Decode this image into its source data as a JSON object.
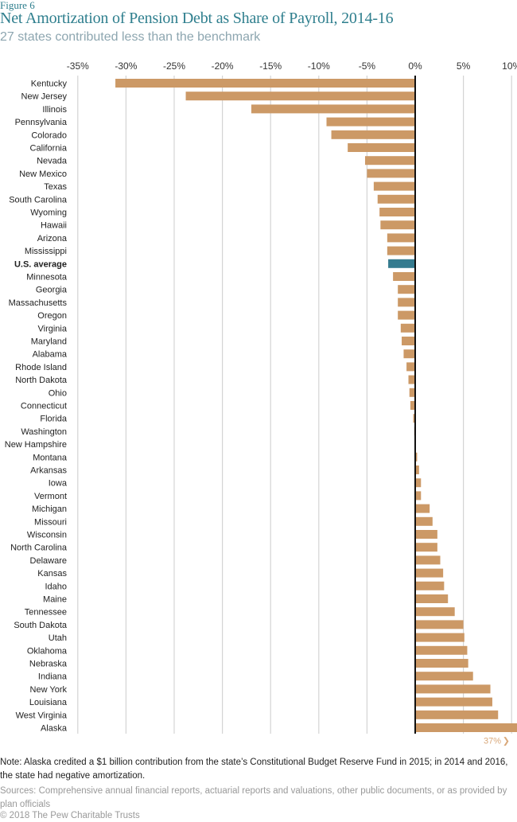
{
  "figure_label": "Figure 6",
  "chart_data": {
    "type": "bar",
    "orientation": "horizontal",
    "title": "Net Amortization of Pension Debt as Share of Payroll, 2014-16",
    "subtitle": "27 states contributed less than the benchmark",
    "xlabel": "",
    "ylabel": "",
    "xlim": [
      -35,
      10
    ],
    "x_ticks": [
      -35,
      -30,
      -25,
      -20,
      -15,
      -10,
      -5,
      0,
      5,
      10
    ],
    "x_tick_labels": [
      "-35%",
      "-30%",
      "-25%",
      "-20%",
      "-15%",
      "-10%",
      "-5%",
      "0%",
      "5%",
      "10%"
    ],
    "grid": true,
    "unit": "%",
    "colors": {
      "bar": "#cc9966",
      "highlight": "#357b8f",
      "zero_line": "#111111",
      "grid": "#d4d4d4",
      "annotation": "#d9a87a"
    },
    "categories": [
      "Kentucky",
      "New Jersey",
      "Illinois",
      "Pennsylvania",
      "Colorado",
      "California",
      "Nevada",
      "New Mexico",
      "Texas",
      "South Carolina",
      "Wyoming",
      "Hawaii",
      "Arizona",
      "Mississippi",
      "U.S. average",
      "Minnesota",
      "Georgia",
      "Massachusetts",
      "Oregon",
      "Virginia",
      "Maryland",
      "Alabama",
      "Rhode Island",
      "North Dakota",
      "Ohio",
      "Connecticut",
      "Florida",
      "Washington",
      "New Hampshire",
      "Montana",
      "Arkansas",
      "Iowa",
      "Vermont",
      "Michigan",
      "Missouri",
      "Wisconsin",
      "North Carolina",
      "Delaware",
      "Kansas",
      "Idaho",
      "Maine",
      "Tennessee",
      "South Dakota",
      "Utah",
      "Oklahoma",
      "Nebraska",
      "Indiana",
      "New York",
      "Louisiana",
      "West Virginia",
      "Alaska"
    ],
    "values": [
      -31.1,
      -23.8,
      -17.0,
      -9.2,
      -8.7,
      -7.0,
      -5.2,
      -5.0,
      -4.3,
      -3.9,
      -3.7,
      -3.6,
      -2.9,
      -2.9,
      -2.8,
      -2.3,
      -1.8,
      -1.8,
      -1.8,
      -1.5,
      -1.4,
      -1.2,
      -0.9,
      -0.7,
      -0.6,
      -0.5,
      -0.2,
      -0.1,
      0.0,
      0.2,
      0.4,
      0.6,
      0.6,
      1.5,
      1.8,
      2.3,
      2.3,
      2.6,
      2.9,
      3.0,
      3.4,
      4.1,
      5.0,
      5.1,
      5.4,
      5.5,
      6.0,
      7.8,
      8.0,
      8.6,
      37.0
    ],
    "highlight": [
      "U.S. average"
    ],
    "annotations": [
      {
        "category": "Alaska",
        "text": "37%",
        "icon": "chevron-right-icon",
        "glyph": "❯"
      }
    ]
  },
  "note": "Note: Alaska credited a $1 billion contribution from the state’s Constitutional Budget Reserve Fund in 2015; in 2014 and 2016, the state had negative amortization.",
  "sources": "Sources: Comprehensive annual financial reports, actuarial reports and valuations, other public documents, or as provided by plan officials",
  "copyright": "© 2018 The Pew Charitable Trusts"
}
